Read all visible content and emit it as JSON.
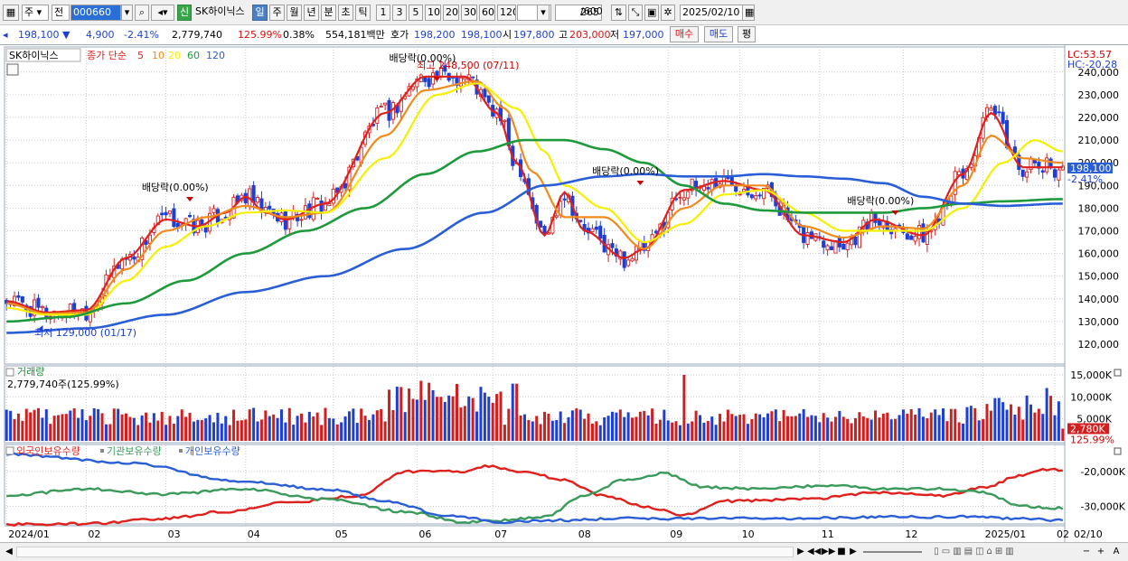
{
  "toolbar": {
    "period_opts": [
      "주",
      "전"
    ],
    "code": "000660",
    "badge_new": "신",
    "stock_name": "SK하이닉스",
    "periods": [
      "일",
      "주",
      "월",
      "년",
      "분",
      "초",
      "틱"
    ],
    "selected_period": "일",
    "intervals": [
      "1",
      "3",
      "5",
      "10",
      "20",
      "30",
      "60",
      "120"
    ],
    "count": "265",
    "count_max": "/600",
    "date": "2025/02/10"
  },
  "quote": {
    "price": "198,100",
    "change": "4,900",
    "change_pct": "-2.41%",
    "volume": "2,779,740",
    "volume_ratio": "125.99%",
    "turnover": "0.38%",
    "amount": "554,181백만",
    "ask_label": "호가",
    "ask": "198,200",
    "bid": "198,100",
    "open_label": "시",
    "open": "197,800",
    "high_label": "고",
    "high": "203,000",
    "low_label": "저",
    "low": "197,000",
    "buy_label": "매수",
    "sell_label": "매도",
    "eval_label": "평"
  },
  "colors": {
    "up": "#d11f1f",
    "down": "#1d3fd6",
    "ma5": "#e0201c",
    "ma10": "#f08a1c",
    "ma20": "#f5f000",
    "ma60": "#1e9a3c",
    "ma120": "#2a5ed6",
    "foreign": "#e0201c",
    "inst": "#3a9a5a",
    "indiv": "#2a5ed6"
  },
  "chart_data": [
    {
      "type": "candlestick",
      "title": "SK하이닉스",
      "legend": [
        "종가 단순",
        "5",
        "10",
        "20",
        "60",
        "120"
      ],
      "ylim": [
        115000,
        250000
      ],
      "yticks": [
        120000,
        130000,
        140000,
        150000,
        160000,
        170000,
        180000,
        190000,
        200000,
        210000,
        220000,
        230000,
        240000
      ],
      "ytick_labels": [
        "120,000",
        "130,000",
        "140,000",
        "150,000",
        "160,000",
        "170,000",
        "180,000",
        "190,000",
        "200,000",
        "210,000",
        "220,000",
        "230,000",
        "240,000"
      ],
      "price_label": "198,100",
      "price_label_pct": "-2.41%",
      "price_label_value": 198100,
      "lc": "LC:53.57",
      "hc": "HC:-20.28",
      "annotations": {
        "high": "최고 248,500 (07/11)",
        "low": "최저 129,000 (01/17)",
        "dividend": "배당락(0.00%)"
      },
      "series": [
        {
          "name": "5",
          "anchors": [
            [
              0,
              139000
            ],
            [
              10,
              134000
            ],
            [
              20,
              135000
            ],
            [
              30,
              158000
            ],
            [
              40,
              175000
            ],
            [
              48,
              172000
            ],
            [
              55,
              178000
            ],
            [
              60,
              185000
            ],
            [
              65,
              178000
            ],
            [
              70,
              175000
            ],
            [
              80,
              182000
            ],
            [
              95,
              222000
            ],
            [
              105,
              238000
            ],
            [
              115,
              238000
            ],
            [
              123,
              222000
            ],
            [
              128,
              200000
            ],
            [
              135,
              168000
            ],
            [
              140,
              187000
            ],
            [
              145,
              170000
            ],
            [
              155,
              158000
            ],
            [
              160,
              162000
            ],
            [
              170,
              188000
            ],
            [
              180,
              192000
            ],
            [
              190,
              188000
            ],
            [
              200,
              168000
            ],
            [
              210,
              165000
            ],
            [
              218,
              175000
            ],
            [
              230,
              168000
            ],
            [
              240,
              195000
            ],
            [
              247,
              222000
            ],
            [
              255,
              198000
            ],
            [
              265,
              198000
            ]
          ]
        },
        {
          "name": "10",
          "anchors": [
            [
              0,
              138000
            ],
            [
              10,
              133500
            ],
            [
              20,
              134000
            ],
            [
              30,
              153000
            ],
            [
              40,
              170000
            ],
            [
              50,
              176000
            ],
            [
              60,
              181000
            ],
            [
              70,
              176000
            ],
            [
              80,
              178000
            ],
            [
              95,
              212000
            ],
            [
              105,
              232000
            ],
            [
              118,
              236000
            ],
            [
              125,
              224000
            ],
            [
              132,
              196000
            ],
            [
              140,
              176000
            ],
            [
              150,
              176000
            ],
            [
              160,
              162000
            ],
            [
              170,
              180000
            ],
            [
              180,
              190000
            ],
            [
              190,
              190000
            ],
            [
              200,
              172000
            ],
            [
              210,
              167000
            ],
            [
              220,
              172000
            ],
            [
              230,
              171000
            ],
            [
              240,
              190000
            ],
            [
              247,
              212000
            ],
            [
              255,
              202000
            ],
            [
              265,
              200000
            ]
          ]
        },
        {
          "name": "20",
          "anchors": [
            [
              0,
              136000
            ],
            [
              10,
              133000
            ],
            [
              20,
              133000
            ],
            [
              30,
              148000
            ],
            [
              40,
              163000
            ],
            [
              50,
              172000
            ],
            [
              60,
              178000
            ],
            [
              70,
              179000
            ],
            [
              80,
              178000
            ],
            [
              95,
              202000
            ],
            [
              108,
              230000
            ],
            [
              118,
              235000
            ],
            [
              128,
              224000
            ],
            [
              135,
              205000
            ],
            [
              140,
              190000
            ],
            [
              150,
              180000
            ],
            [
              160,
              165000
            ],
            [
              170,
              173000
            ],
            [
              180,
              186000
            ],
            [
              190,
              188000
            ],
            [
              200,
              178000
            ],
            [
              210,
              170000
            ],
            [
              220,
              170000
            ],
            [
              230,
              170000
            ],
            [
              240,
              180000
            ],
            [
              250,
              200000
            ],
            [
              258,
              210000
            ],
            [
              265,
              205000
            ]
          ]
        },
        {
          "name": "60",
          "anchors": [
            [
              0,
              130000
            ],
            [
              15,
              132000
            ],
            [
              30,
              138000
            ],
            [
              45,
              148000
            ],
            [
              60,
              160000
            ],
            [
              75,
              170000
            ],
            [
              90,
              180000
            ],
            [
              105,
              195000
            ],
            [
              118,
              205000
            ],
            [
              130,
              210000
            ],
            [
              140,
              210000
            ],
            [
              150,
              206000
            ],
            [
              160,
              200000
            ],
            [
              170,
              190000
            ],
            [
              180,
              182000
            ],
            [
              190,
              179000
            ],
            [
              200,
              178000
            ],
            [
              210,
              178000
            ],
            [
              220,
              178000
            ],
            [
              230,
              180000
            ],
            [
              240,
              182000
            ],
            [
              250,
              183000
            ],
            [
              265,
              184000
            ]
          ]
        },
        {
          "name": "120",
          "anchors": [
            [
              0,
              125000
            ],
            [
              20,
              127000
            ],
            [
              40,
              133000
            ],
            [
              60,
              143000
            ],
            [
              80,
              150000
            ],
            [
              100,
              162000
            ],
            [
              120,
              178000
            ],
            [
              135,
              190000
            ],
            [
              150,
              194000
            ],
            [
              160,
              195000
            ],
            [
              170,
              194000
            ],
            [
              180,
              194000
            ],
            [
              190,
              195000
            ],
            [
              200,
              194000
            ],
            [
              210,
              193000
            ],
            [
              220,
              191000
            ],
            [
              230,
              185000
            ],
            [
              240,
              182000
            ],
            [
              250,
              181000
            ],
            [
              265,
              182000
            ]
          ]
        }
      ]
    },
    {
      "type": "bar",
      "title": "거래량",
      "readout": "2,779,740주(125.99%)",
      "ylim": [
        0,
        16000
      ],
      "yticks": [
        5000,
        10000,
        15000
      ],
      "ytick_labels": [
        "5,000K",
        "10,000K",
        "15,000K"
      ],
      "last_label": "2,780K",
      "last_label_pct": "125.99%",
      "last_value": 2780
    },
    {
      "type": "line",
      "legend": [
        "외국인보유수량",
        "기관보유수량",
        "개인보유수량"
      ],
      "ylim": [
        -35000,
        -15000
      ],
      "yticks": [
        -30000,
        -20000
      ],
      "ytick_labels": [
        "-30,000K",
        "-20,000K"
      ],
      "series": [
        {
          "name": "외국인보유수량",
          "anchors": [
            [
              0,
              -35200
            ],
            [
              20,
              -35000
            ],
            [
              40,
              -33500
            ],
            [
              55,
              -31500
            ],
            [
              70,
              -29000
            ],
            [
              88,
              -27000
            ],
            [
              100,
              -20000
            ],
            [
              115,
              -20000
            ],
            [
              120,
              -18500
            ],
            [
              130,
              -20000
            ],
            [
              140,
              -22500
            ],
            [
              150,
              -27000
            ],
            [
              160,
              -30000
            ],
            [
              170,
              -32500
            ],
            [
              180,
              -28500
            ],
            [
              200,
              -28000
            ],
            [
              220,
              -26000
            ],
            [
              235,
              -27000
            ],
            [
              245,
              -24500
            ],
            [
              255,
              -21000
            ],
            [
              260,
              -19500
            ],
            [
              265,
              -19500
            ]
          ]
        },
        {
          "name": "기관보유수량",
          "anchors": [
            [
              0,
              -27000
            ],
            [
              20,
              -25000
            ],
            [
              40,
              -26500
            ],
            [
              60,
              -25000
            ],
            [
              80,
              -28000
            ],
            [
              100,
              -31500
            ],
            [
              115,
              -34500
            ],
            [
              125,
              -34000
            ],
            [
              135,
              -33000
            ],
            [
              145,
              -27000
            ],
            [
              155,
              -22500
            ],
            [
              165,
              -20500
            ],
            [
              175,
              -24500
            ],
            [
              190,
              -25000
            ],
            [
              205,
              -24000
            ],
            [
              220,
              -25000
            ],
            [
              235,
              -25000
            ],
            [
              245,
              -26000
            ],
            [
              255,
              -30000
            ],
            [
              265,
              -30500
            ]
          ]
        },
        {
          "name": "개인보유수량",
          "anchors": [
            [
              0,
              -15000
            ],
            [
              30,
              -17500
            ],
            [
              60,
              -23000
            ],
            [
              80,
              -25000
            ],
            [
              95,
              -28500
            ],
            [
              110,
              -32500
            ],
            [
              125,
              -34500
            ],
            [
              140,
              -34000
            ],
            [
              155,
              -33500
            ],
            [
              170,
              -33500
            ],
            [
              185,
              -33500
            ],
            [
              200,
              -33500
            ],
            [
              220,
              -33000
            ],
            [
              240,
              -33000
            ],
            [
              255,
              -33500
            ],
            [
              265,
              -34000
            ]
          ]
        }
      ]
    }
  ],
  "xaxis": {
    "labels": [
      "2024/01",
      "02",
      "03",
      "04",
      "05",
      "06",
      "07",
      "08",
      "09",
      "10",
      "11",
      "12",
      "2025/01",
      "02"
    ],
    "bars": [
      0,
      20,
      40,
      60,
      82,
      103,
      122,
      143,
      166,
      184,
      204,
      225,
      245,
      263
    ],
    "end_label": "02/10"
  },
  "scroll": {
    "buttons": [
      "▶",
      "◀◀",
      "▶▶",
      "■",
      "▶"
    ],
    "zoom": [
      "−",
      "+",
      "A"
    ]
  }
}
